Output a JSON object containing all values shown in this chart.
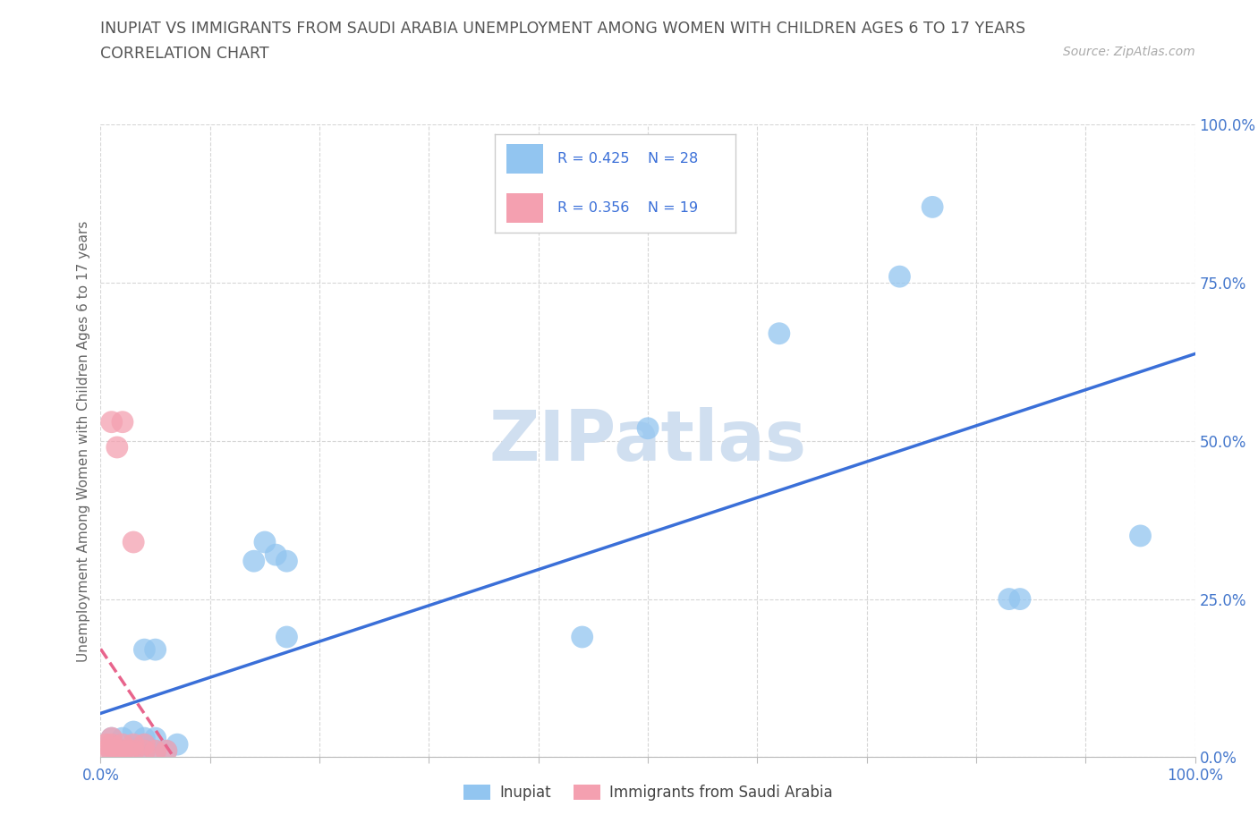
{
  "title": "INUPIAT VS IMMIGRANTS FROM SAUDI ARABIA UNEMPLOYMENT AMONG WOMEN WITH CHILDREN AGES 6 TO 17 YEARS",
  "subtitle": "CORRELATION CHART",
  "source": "Source: ZipAtlas.com",
  "ylabel": "Unemployment Among Women with Children Ages 6 to 17 years",
  "xlim": [
    0.0,
    1.0
  ],
  "ylim": [
    0.0,
    1.0
  ],
  "xticks": [
    0.0,
    0.1,
    0.2,
    0.3,
    0.4,
    0.5,
    0.6,
    0.7,
    0.8,
    0.9,
    1.0
  ],
  "yticks": [
    0.0,
    0.25,
    0.5,
    0.75,
    1.0
  ],
  "xticklabels_sparse": {
    "0.0": "0.0%",
    "1.0": "100.0%"
  },
  "yticklabels": [
    "0.0%",
    "25.0%",
    "50.0%",
    "75.0%",
    "100.0%"
  ],
  "inupiat_color": "#92c5f0",
  "saudi_color": "#f4a0b0",
  "trend_blue": "#3a6fd8",
  "trend_pink": "#e8648c",
  "watermark_color": "#d0dff0",
  "inupiat_x": [
    0.01,
    0.01,
    0.02,
    0.02,
    0.03,
    0.03,
    0.04,
    0.04,
    0.04,
    0.04,
    0.05,
    0.05,
    0.05,
    0.06,
    0.07,
    0.14,
    0.15,
    0.16,
    0.17,
    0.17,
    0.44,
    0.5,
    0.62,
    0.73,
    0.76,
    0.83,
    0.84,
    0.95
  ],
  "inupiat_y": [
    0.01,
    0.03,
    0.01,
    0.03,
    0.01,
    0.04,
    0.01,
    0.02,
    0.03,
    0.17,
    0.01,
    0.03,
    0.17,
    0.01,
    0.02,
    0.31,
    0.34,
    0.32,
    0.31,
    0.19,
    0.19,
    0.52,
    0.67,
    0.76,
    0.87,
    0.25,
    0.25,
    0.35
  ],
  "saudi_x": [
    0.005,
    0.005,
    0.01,
    0.01,
    0.01,
    0.01,
    0.015,
    0.015,
    0.02,
    0.02,
    0.02,
    0.025,
    0.03,
    0.03,
    0.03,
    0.04,
    0.04,
    0.05,
    0.06
  ],
  "saudi_y": [
    0.01,
    0.02,
    0.01,
    0.02,
    0.03,
    0.53,
    0.01,
    0.49,
    0.01,
    0.02,
    0.53,
    0.01,
    0.01,
    0.02,
    0.34,
    0.01,
    0.02,
    0.01,
    0.01
  ],
  "inupiat_label": "Inupiat",
  "saudi_label": "Immigrants from Saudi Arabia",
  "legend_r1": "R = 0.425",
  "legend_n1": "N = 28",
  "legend_r2": "R = 0.356",
  "legend_n2": "N = 19"
}
